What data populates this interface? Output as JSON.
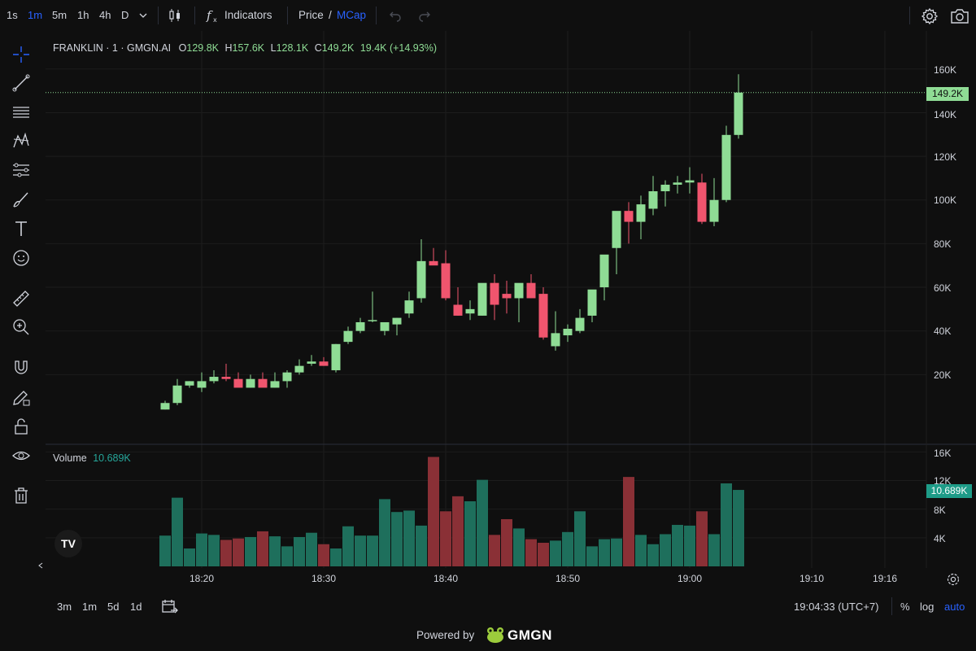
{
  "toolbar": {
    "timeframes": [
      "1s",
      "1m",
      "5m",
      "1h",
      "4h",
      "D"
    ],
    "active_timeframe": "1m",
    "indicators_label": "Indicators",
    "price_label": "Price",
    "slash": "/",
    "mcap_label": "MCap"
  },
  "legend": {
    "symbol": "FRANKLIN · 1 · GMGN.AI",
    "o_label": "O",
    "o": "129.8K",
    "h_label": "H",
    "h": "157.6K",
    "l_label": "L",
    "l": "128.1K",
    "c_label": "C",
    "c": "149.2K",
    "change": "19.4K (+14.93%)",
    "volume_label": "Volume",
    "volume_value": "10.689K"
  },
  "price_badge": "149.2K",
  "volume_badge": "10.689K",
  "price_axis": [
    "160K",
    "140K",
    "120K",
    "100K",
    "80K",
    "60K",
    "40K",
    "20K"
  ],
  "volume_axis": [
    "16K",
    "12K",
    "8K",
    "4K"
  ],
  "time_axis": [
    "18:20",
    "18:30",
    "18:40",
    "18:50",
    "19:00",
    "19:10",
    "19:16"
  ],
  "bottombar": {
    "ranges": [
      "3m",
      "1m",
      "5d",
      "1d"
    ],
    "clock": "19:04:33 (UTC+7)",
    "percent": "%",
    "log": "log",
    "auto": "auto"
  },
  "footer": {
    "powered": "Powered by",
    "brand": "GMGN"
  },
  "tv_logo": "TV",
  "colors": {
    "up": "#8fdc95",
    "down": "#f0556e",
    "vol_up": "#1e6f5c",
    "vol_down": "#8a3036",
    "accent": "#2962ff"
  },
  "chart_data": {
    "type": "candlestick",
    "x": [
      "18:17",
      "18:18",
      "18:19",
      "18:20",
      "18:21",
      "18:22",
      "18:23",
      "18:24",
      "18:25",
      "18:26",
      "18:27",
      "18:28",
      "18:29",
      "18:30",
      "18:31",
      "18:32",
      "18:33",
      "18:34",
      "18:35",
      "18:36",
      "18:37",
      "18:38",
      "18:39",
      "18:40",
      "18:41",
      "18:42",
      "18:43",
      "18:44",
      "18:45",
      "18:46",
      "18:47",
      "18:48",
      "18:49",
      "18:50",
      "18:51",
      "18:52",
      "18:53",
      "18:54",
      "18:55",
      "18:56",
      "18:57",
      "18:58",
      "18:59",
      "19:00",
      "19:01",
      "19:02",
      "19:03",
      "19:04"
    ],
    "open": [
      4,
      7,
      15,
      14,
      17,
      19,
      18,
      14,
      18,
      14,
      17,
      21,
      25,
      26,
      22,
      35,
      40,
      45,
      40,
      43,
      48,
      55,
      72,
      71,
      52,
      48,
      47,
      62,
      57,
      55,
      62,
      57,
      33,
      38,
      40,
      47,
      60,
      78,
      95,
      90,
      96,
      104,
      107,
      108,
      108,
      90,
      100,
      129.8
    ],
    "high": [
      8,
      18,
      17,
      21,
      22,
      25,
      21,
      20,
      21,
      21,
      22,
      27,
      29,
      28,
      34,
      42,
      46,
      58,
      44,
      46,
      58,
      82,
      78,
      77,
      60,
      54,
      53,
      66,
      63,
      57,
      66,
      60,
      49,
      43,
      50,
      57,
      66,
      88,
      99,
      102,
      111,
      109,
      111,
      115,
      112,
      110,
      134,
      157.6
    ],
    "low": [
      4,
      6,
      14,
      12,
      16,
      17,
      15,
      14,
      15,
      14,
      14,
      20,
      24,
      24,
      21,
      34,
      39,
      44,
      38,
      38,
      46,
      53,
      71,
      54,
      47,
      45,
      47,
      45,
      48,
      44,
      55,
      36,
      31,
      35,
      39,
      44,
      54,
      66,
      80,
      82,
      93,
      97,
      103,
      103,
      89,
      88,
      99,
      128.1
    ],
    "close": [
      7,
      15,
      17,
      17,
      19,
      18,
      14,
      18,
      14,
      17,
      21,
      24,
      26,
      24,
      34,
      40,
      44,
      45,
      44,
      46,
      54,
      72,
      70,
      55,
      47,
      50,
      62,
      52,
      55,
      62,
      55,
      37,
      39,
      41,
      46,
      59,
      75,
      95,
      90,
      98,
      104,
      107,
      108,
      109,
      90,
      100,
      129.8,
      149.2
    ],
    "volume": [
      4300,
      9600,
      2500,
      4600,
      4400,
      3700,
      3900,
      4100,
      4900,
      4200,
      2800,
      4100,
      4700,
      3100,
      2500,
      5600,
      4300,
      4300,
      9400,
      7600,
      7800,
      5700,
      15300,
      7700,
      9800,
      9100,
      12100,
      4400,
      6600,
      5300,
      3800,
      3300,
      3600,
      4800,
      7700,
      2800,
      3800,
      3900,
      12500,
      4400,
      3100,
      4500,
      5800,
      5700,
      7700,
      4500,
      11600,
      10689
    ],
    "ylim": [
      0,
      165000
    ],
    "ylabel": "",
    "xlabel": ""
  }
}
